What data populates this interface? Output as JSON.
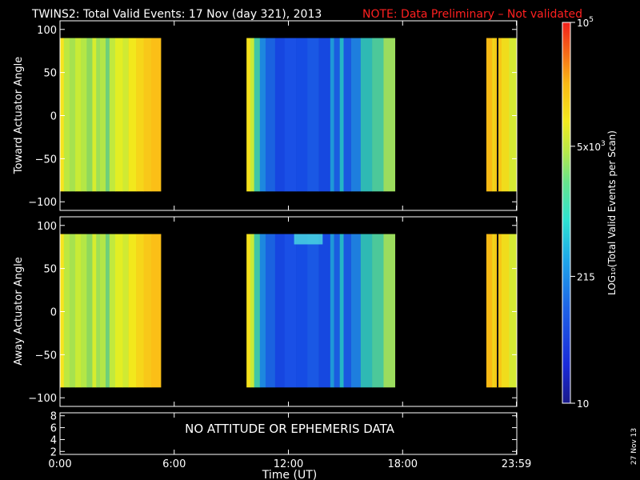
{
  "chart_data": [
    {
      "type": "heatmap",
      "title": "TWINS2: Total Valid Events: 17 Nov (day 321), 2013",
      "note": "NOTE: Data Preliminary – Not validated",
      "ylabel": "Toward Actuator Angle",
      "xlim": [
        0,
        24
      ],
      "ylim": [
        -110,
        110
      ],
      "y_ticks": [
        "100",
        "50",
        "0",
        "−50",
        "−100"
      ],
      "y_tick_values": [
        100,
        50,
        0,
        -50,
        -100
      ],
      "data_extent_y": [
        -88,
        90
      ],
      "data_intervals_hours": [
        [
          0,
          5.3
        ],
        [
          9.8,
          17.6
        ],
        [
          22.4,
          24
        ]
      ],
      "bands": [
        {
          "x0": 0.0,
          "x1": 0.2,
          "color": "#f7e41e"
        },
        {
          "x0": 0.2,
          "x1": 0.5,
          "color": "#bde840"
        },
        {
          "x0": 0.5,
          "x1": 0.8,
          "color": "#a6e24f"
        },
        {
          "x0": 0.8,
          "x1": 1.1,
          "color": "#c8eb36"
        },
        {
          "x0": 1.1,
          "x1": 1.4,
          "color": "#b4e746"
        },
        {
          "x0": 1.4,
          "x1": 1.7,
          "color": "#8fd95c"
        },
        {
          "x0": 1.7,
          "x1": 1.9,
          "color": "#d6ec2e"
        },
        {
          "x0": 1.9,
          "x1": 2.1,
          "color": "#9ee056"
        },
        {
          "x0": 2.1,
          "x1": 2.4,
          "color": "#b3e648"
        },
        {
          "x0": 2.4,
          "x1": 2.6,
          "color": "#6fd07a"
        },
        {
          "x0": 2.6,
          "x1": 2.9,
          "color": "#c1e93e"
        },
        {
          "x0": 2.9,
          "x1": 3.3,
          "color": "#e3ee23"
        },
        {
          "x0": 3.3,
          "x1": 3.6,
          "color": "#d0ea33"
        },
        {
          "x0": 3.6,
          "x1": 4.0,
          "color": "#f2e81c"
        },
        {
          "x0": 4.0,
          "x1": 4.4,
          "color": "#f6d61a"
        },
        {
          "x0": 4.4,
          "x1": 4.8,
          "color": "#f8c819"
        },
        {
          "x0": 4.8,
          "x1": 5.3,
          "color": "#fbbf17"
        },
        {
          "x0": 9.8,
          "x1": 10.0,
          "color": "#f5e21c"
        },
        {
          "x0": 10.0,
          "x1": 10.2,
          "color": "#c6ea38"
        },
        {
          "x0": 10.2,
          "x1": 10.5,
          "color": "#3fc6a6"
        },
        {
          "x0": 10.5,
          "x1": 10.8,
          "color": "#1d88df"
        },
        {
          "x0": 10.8,
          "x1": 11.3,
          "color": "#1a62e0"
        },
        {
          "x0": 11.3,
          "x1": 11.8,
          "color": "#1646e0"
        },
        {
          "x0": 11.8,
          "x1": 12.4,
          "color": "#1a50e6"
        },
        {
          "x0": 12.4,
          "x1": 13.0,
          "color": "#164ce4"
        },
        {
          "x0": 13.0,
          "x1": 13.6,
          "color": "#1a58e4"
        },
        {
          "x0": 13.6,
          "x1": 14.2,
          "color": "#1648e0"
        },
        {
          "x0": 14.2,
          "x1": 14.4,
          "color": "#1f98d8"
        },
        {
          "x0": 14.4,
          "x1": 14.7,
          "color": "#1a5ce0"
        },
        {
          "x0": 14.7,
          "x1": 14.9,
          "color": "#25b6c6"
        },
        {
          "x0": 14.9,
          "x1": 15.3,
          "color": "#1a58e0"
        },
        {
          "x0": 15.3,
          "x1": 15.8,
          "color": "#1e7ede"
        },
        {
          "x0": 15.8,
          "x1": 16.4,
          "color": "#2fb9b4"
        },
        {
          "x0": 16.4,
          "x1": 17.0,
          "color": "#4cc89a"
        },
        {
          "x0": 17.0,
          "x1": 17.6,
          "color": "#9bdc5e"
        },
        {
          "x0": 22.4,
          "x1": 22.7,
          "color": "#f8b914"
        },
        {
          "x0": 22.7,
          "x1": 22.85,
          "color": "#f2d41a"
        },
        {
          "x0": 22.85,
          "x1": 23.2,
          "color": "#f7c716"
        },
        {
          "x0": 23.2,
          "x1": 23.6,
          "color": "#f0dc1c"
        },
        {
          "x0": 23.6,
          "x1": 24.0,
          "color": "#d4ea33"
        }
      ]
    },
    {
      "type": "heatmap",
      "ylabel": "Away Actuator Angle",
      "xlim": [
        0,
        24
      ],
      "ylim": [
        -110,
        110
      ],
      "y_ticks": [
        "100",
        "50",
        "0",
        "−50",
        "−100"
      ],
      "y_tick_values": [
        100,
        50,
        0,
        -50,
        -100
      ],
      "data_extent_y": [
        -88,
        90
      ],
      "data_intervals_hours": [
        [
          0,
          5.3
        ],
        [
          9.8,
          17.6
        ],
        [
          22.4,
          24
        ]
      ],
      "bands": [
        {
          "x0": 0.0,
          "x1": 0.2,
          "color": "#f7e41e"
        },
        {
          "x0": 0.2,
          "x1": 0.5,
          "color": "#bde840"
        },
        {
          "x0": 0.5,
          "x1": 0.8,
          "color": "#a6e24f"
        },
        {
          "x0": 0.8,
          "x1": 1.1,
          "color": "#c8eb36"
        },
        {
          "x0": 1.1,
          "x1": 1.4,
          "color": "#b4e746"
        },
        {
          "x0": 1.4,
          "x1": 1.7,
          "color": "#8fd95c"
        },
        {
          "x0": 1.7,
          "x1": 1.9,
          "color": "#d6ec2e"
        },
        {
          "x0": 1.9,
          "x1": 2.1,
          "color": "#9ee056"
        },
        {
          "x0": 2.1,
          "x1": 2.4,
          "color": "#b3e648"
        },
        {
          "x0": 2.4,
          "x1": 2.6,
          "color": "#6fd07a"
        },
        {
          "x0": 2.6,
          "x1": 2.9,
          "color": "#c1e93e"
        },
        {
          "x0": 2.9,
          "x1": 3.3,
          "color": "#e3ee23"
        },
        {
          "x0": 3.3,
          "x1": 3.6,
          "color": "#d0ea33"
        },
        {
          "x0": 3.6,
          "x1": 4.0,
          "color": "#f2e81c"
        },
        {
          "x0": 4.0,
          "x1": 4.4,
          "color": "#f6d61a"
        },
        {
          "x0": 4.4,
          "x1": 4.8,
          "color": "#f8c819"
        },
        {
          "x0": 4.8,
          "x1": 5.3,
          "color": "#fbbf17"
        },
        {
          "x0": 9.8,
          "x1": 10.0,
          "color": "#f5e21c"
        },
        {
          "x0": 10.0,
          "x1": 10.2,
          "color": "#c6ea38"
        },
        {
          "x0": 10.2,
          "x1": 10.5,
          "color": "#3fc6a6"
        },
        {
          "x0": 10.5,
          "x1": 10.8,
          "color": "#1d88df"
        },
        {
          "x0": 10.8,
          "x1": 11.3,
          "color": "#1a62e0"
        },
        {
          "x0": 11.3,
          "x1": 11.8,
          "color": "#1646e0"
        },
        {
          "x0": 11.8,
          "x1": 12.4,
          "color": "#1a50e6"
        },
        {
          "x0": 12.4,
          "x1": 13.0,
          "color": "#164ce4"
        },
        {
          "x0": 13.0,
          "x1": 13.6,
          "color": "#1a58e4"
        },
        {
          "x0": 13.6,
          "x1": 14.2,
          "color": "#1648e0"
        },
        {
          "x0": 14.2,
          "x1": 14.4,
          "color": "#1f98d8"
        },
        {
          "x0": 14.4,
          "x1": 14.7,
          "color": "#1a5ce0"
        },
        {
          "x0": 14.7,
          "x1": 14.9,
          "color": "#25b6c6"
        },
        {
          "x0": 14.9,
          "x1": 15.3,
          "color": "#1a58e0"
        },
        {
          "x0": 15.3,
          "x1": 15.8,
          "color": "#1e7ede"
        },
        {
          "x0": 15.8,
          "x1": 16.4,
          "color": "#2fb9b4"
        },
        {
          "x0": 16.4,
          "x1": 17.0,
          "color": "#4cc89a"
        },
        {
          "x0": 17.0,
          "x1": 17.6,
          "color": "#9bdc5e"
        },
        {
          "x0": 22.4,
          "x1": 22.7,
          "color": "#f8b914"
        },
        {
          "x0": 22.7,
          "x1": 22.85,
          "color": "#f2d41a"
        },
        {
          "x0": 22.85,
          "x1": 23.2,
          "color": "#f7c716"
        },
        {
          "x0": 23.2,
          "x1": 23.6,
          "color": "#f0dc1c"
        },
        {
          "x0": 23.6,
          "x1": 24.0,
          "color": "#d4ea33"
        }
      ],
      "highlight": {
        "x0": 12.3,
        "x1": 13.8,
        "y0": 78,
        "y1": 90,
        "color": "#4fe6e0"
      }
    },
    {
      "type": "line",
      "message": "NO ATTITUDE OR EPHEMERIS DATA",
      "xlim": [
        0,
        24
      ],
      "ylim": [
        1.5,
        8.5
      ],
      "y_ticks": [
        "8",
        "6",
        "4",
        "2"
      ],
      "y_tick_values": [
        8,
        6,
        4,
        2
      ],
      "x_ticks": [
        "0:00",
        "6:00",
        "12:00",
        "18:00",
        "23:59"
      ],
      "x_tick_values": [
        0,
        6,
        12,
        18,
        23.98
      ],
      "xlabel": "Time (UT)"
    }
  ],
  "colorbar": {
    "label": "LOG₁₀(Total Valid Events per Scan)",
    "scale": "log",
    "range": [
      10,
      100000
    ],
    "tick_labels": [
      {
        "value": 100000,
        "base": "10",
        "sup": "5",
        "pre": ""
      },
      {
        "value": 5000,
        "base": "5x10",
        "sup": "3",
        "pre": ""
      },
      {
        "value": 215,
        "base": "215",
        "sup": "",
        "pre": ""
      },
      {
        "value": 10,
        "base": "10",
        "sup": "",
        "pre": ""
      }
    ]
  },
  "footer": {
    "date_stamp": "27 Nov 13"
  },
  "colors": {
    "background": "#000000",
    "foreground": "#ffffff",
    "note": "#ff2020"
  }
}
